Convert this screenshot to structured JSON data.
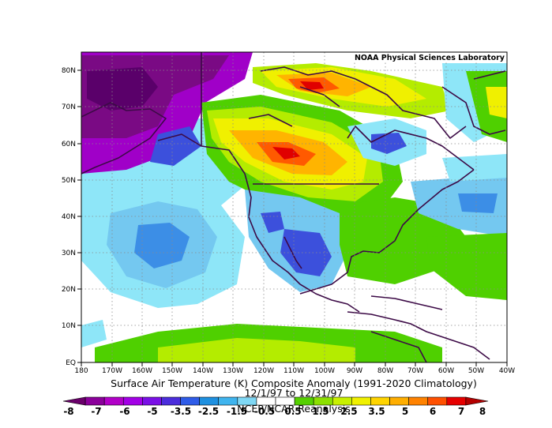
{
  "header": {
    "lab_label": "NOAA Physical Sciences Laboratory"
  },
  "title": {
    "line1": "Surface Air Temperature (K) Composite Anomaly (1991-2020 Climatology)",
    "line2": "12/1/97  to 12/31/97",
    "line3": "NCEP/NCAR Reanalysis"
  },
  "axes": {
    "lat_labels": [
      "80N",
      "70N",
      "60N",
      "50N",
      "40N",
      "30N",
      "20N",
      "10N",
      "EQ"
    ],
    "lon_labels": [
      "180",
      "170W",
      "160W",
      "150W",
      "140W",
      "130W",
      "120W",
      "110W",
      "100W",
      "90W",
      "80W",
      "70W",
      "60W",
      "50W",
      "40W"
    ]
  },
  "colorbar": {
    "labels": [
      "-8",
      "-7",
      "-6",
      "-5",
      "-3.5",
      "-2.5",
      "-1.5",
      "-0.5",
      "0.5",
      "1.5",
      "2.5",
      "3.5",
      "5",
      "6",
      "7",
      "8"
    ],
    "colors": [
      "#6a006a",
      "#8b009b",
      "#b200c8",
      "#a300e6",
      "#7a10e6",
      "#4b2ddc",
      "#2f5ce8",
      "#1e90e0",
      "#3fb4ee",
      "#7fd8f5",
      "#ffffff",
      "#ffffff",
      "#55d000",
      "#8ce000",
      "#c8f000",
      "#f0f000",
      "#ffd400",
      "#ffae00",
      "#ff8200",
      "#ff5000",
      "#e60000",
      "#b40000"
    ]
  },
  "palette": {
    "deep_purple": "#7a0a84",
    "violet": "#a000c8",
    "blue": "#3c50dc",
    "light_blue": "#74c8f0",
    "cyan": "#8ee6f8",
    "green": "#4fd000",
    "yellow_green": "#b4ec00",
    "yellow": "#f0f000",
    "orange": "#ffb400",
    "red": "#ff5a00",
    "dark_red": "#e00000",
    "coast": "#3c0a46"
  }
}
